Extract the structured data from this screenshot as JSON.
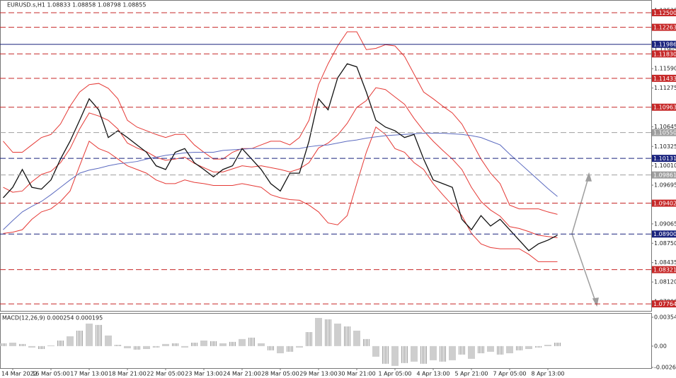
{
  "chart_data": [
    {
      "type": "line",
      "title": "EURUSD.s,H1  1.08833 1.08858 1.08798 1.08855",
      "categories": [
        null,
        "14 Mar 2022",
        null,
        null,
        null,
        "16 Mar 05:00",
        null,
        null,
        null,
        "17 Mar 13:00",
        null,
        null,
        null,
        "18 Mar 21:00",
        null,
        null,
        null,
        "22 Mar 05:00",
        null,
        null,
        null,
        "23 Mar 13:00",
        null,
        null,
        null,
        "24 Mar 21:00",
        null,
        null,
        null,
        "28 Mar 05:00",
        null,
        null,
        null,
        "29 Mar 13:00",
        null,
        null,
        null,
        "30 Mar 21:00",
        null,
        null,
        null,
        "1 Apr 05:00",
        null,
        null,
        null,
        "4 Apr 13:00",
        null,
        null,
        null,
        "5 Apr 21:00",
        null,
        null,
        null,
        "7 Apr 05:00",
        null,
        null,
        null,
        "8 Apr 13:00",
        null
      ],
      "series": [
        {
          "color": "#e53935",
          "values": [
            1.1041,
            1.1023,
            1.1023,
            1.1035,
            1.1047,
            1.1052,
            1.1069,
            1.1098,
            1.1121,
            1.1133,
            1.1135,
            1.1127,
            1.111,
            1.1075,
            1.1064,
            1.1058,
            1.1052,
            1.1047,
            1.1052,
            1.1052,
            1.1035,
            1.1023,
            1.1012,
            1.1012,
            1.1023,
            1.1029,
            1.1029,
            1.1035,
            1.1041,
            1.1041,
            1.1035,
            1.1047,
            1.1075,
            1.1133,
            1.1167,
            1.1196,
            1.1219,
            1.1219,
            1.119,
            1.1192,
            1.1198,
            1.1196,
            1.1179,
            1.115,
            1.1121,
            1.111,
            1.1098,
            1.1087,
            1.1069,
            1.1041,
            1.1012,
            1.0989,
            1.0972,
            1.0937,
            1.0931,
            1.0931,
            1.0931,
            1.0926,
            1.0922
          ]
        },
        {
          "color": "#e53935",
          "values": [
            1.0966,
            1.0958,
            1.096,
            1.0975,
            1.0987,
            1.0992,
            1.1006,
            1.1029,
            1.1061,
            1.1087,
            1.1082,
            1.1075,
            1.1061,
            1.1038,
            1.103,
            1.1024,
            1.1015,
            1.101,
            1.1012,
            1.1015,
            1.1005,
            1.0998,
            1.0991,
            1.0991,
            1.0996,
            1.1001,
            1.0999,
            1.1001,
            1.0998,
            1.0995,
            1.0991,
            1.0996,
            1.1006,
            1.103,
            1.1038,
            1.1051,
            1.107,
            1.1096,
            1.1107,
            1.1128,
            1.1125,
            1.1113,
            1.1101,
            1.1078,
            1.1058,
            1.1041,
            1.1026,
            1.1012,
            1.0995,
            1.0966,
            1.0943,
            1.0929,
            1.0919,
            1.0902,
            1.0899,
            1.0894,
            1.0888,
            1.0886,
            1.0884
          ]
        },
        {
          "color": "#e53935",
          "values": [
            1.0891,
            1.0893,
            1.0897,
            1.0914,
            1.0926,
            1.0931,
            1.0943,
            1.096,
            1.1001,
            1.1041,
            1.1029,
            1.1023,
            1.1012,
            1.1001,
            1.0995,
            1.0989,
            1.0978,
            1.0972,
            1.0972,
            1.0978,
            1.0974,
            1.0972,
            1.0969,
            1.0969,
            1.0969,
            1.0972,
            1.0969,
            1.0966,
            1.0954,
            1.0949,
            1.0946,
            1.0945,
            1.0937,
            1.0926,
            1.0908,
            1.0905,
            1.092,
            1.0972,
            1.1023,
            1.1064,
            1.1052,
            1.1029,
            1.1023,
            1.1006,
            1.0995,
            1.0972,
            1.0954,
            1.0937,
            1.092,
            1.0891,
            1.0874,
            1.0868,
            1.0866,
            1.0866,
            1.0866,
            1.0857,
            1.0845,
            1.0845,
            1.0845
          ]
        },
        {
          "color": "#5c6bc0",
          "values": [
            1.0897,
            1.0912,
            1.0926,
            1.0935,
            1.0943,
            1.0954,
            1.0966,
            1.0978,
            1.0989,
            1.0994,
            1.0997,
            1.1001,
            1.1004,
            1.1006,
            1.1008,
            1.1012,
            1.1015,
            1.1018,
            1.102,
            1.1022,
            1.1023,
            1.1023,
            1.1023,
            1.1026,
            1.1027,
            1.1028,
            1.1029,
            1.1029,
            1.1029,
            1.1029,
            1.1029,
            1.1029,
            1.1032,
            1.1034,
            1.1035,
            1.1038,
            1.1041,
            1.1043,
            1.1046,
            1.1048,
            1.105,
            1.1051,
            1.1052,
            1.1053,
            1.1054,
            1.1054,
            1.1054,
            1.1053,
            1.1052,
            1.105,
            1.1047,
            1.1041,
            1.1035,
            1.102,
            1.1006,
            1.0992,
            1.0978,
            1.0964,
            1.0951
          ]
        },
        {
          "color": "#111111",
          "values": [
            1.0949,
            1.0966,
            1.0995,
            1.0966,
            1.0963,
            1.0978,
            1.1012,
            1.1041,
            1.1075,
            1.111,
            1.1092,
            1.1047,
            1.1058,
            1.1047,
            1.1035,
            1.1023,
            1.1001,
            1.0995,
            1.1023,
            1.1029,
            1.1006,
            1.0995,
            1.0983,
            1.0995,
            1.1001,
            1.1029,
            1.1012,
            1.0995,
            1.0972,
            1.096,
            1.0989,
            1.0989,
            1.1041,
            1.111,
            1.1092,
            1.1144,
            1.1167,
            1.1162,
            1.1121,
            1.1075,
            1.1064,
            1.1058,
            1.1047,
            1.1052,
            1.1012,
            1.0978,
            1.0972,
            1.0966,
            1.0914,
            1.0897,
            1.092,
            1.0903,
            1.0914,
            1.0897,
            1.088,
            1.0863,
            1.0874,
            1.088,
            1.0888
          ]
        }
      ],
      "ylim": [
        1.0765,
        1.12707
      ],
      "yticks": [
        1.12535,
        1.11905,
        {
          "value": 1.1159,
          "label": "1.11590"
        },
        1.11275,
        1.10645,
        1.10325,
        {
          "value": 1.1001,
          "label": "1.10010"
        },
        1.09695,
        1.09065,
        {
          "value": 1.0875,
          "label": "1.08750"
        },
        1.08435,
        {
          "value": 1.0812,
          "label": "1.08120"
        },
        {
          "value": 1.078,
          "label": "1.07800"
        }
      ],
      "levels": [
        {
          "value": 1.125,
          "label": "1.12500",
          "color": "#c62828",
          "style": "dashed"
        },
        {
          "value": 1.12263,
          "label": "1.12263",
          "color": "#c62828",
          "style": "dashed"
        },
        {
          "value": 1.11986,
          "label": "1.11986",
          "color": "#1a237e",
          "style": "solid"
        },
        {
          "value": 1.1183,
          "label": "1.11830",
          "color": "#c62828",
          "style": "dashed"
        },
        {
          "value": 1.11433,
          "label": "1.11433",
          "color": "#c62828",
          "style": "dashed"
        },
        {
          "value": 1.10963,
          "label": "1.10963",
          "color": "#c62828",
          "style": "dashed"
        },
        {
          "value": 1.1055,
          "label": "1.10550",
          "color": "#9e9e9e",
          "style": "dashed"
        },
        {
          "value": 1.10131,
          "label": "1.10131",
          "color": "#1a237e",
          "style": "dashed"
        },
        {
          "value": 1.09861,
          "label": "1.09861",
          "color": "#9e9e9e",
          "style": "dashed"
        },
        {
          "value": 1.09402,
          "label": "1.09402",
          "color": "#c62828",
          "style": "dashed"
        },
        {
          "value": 1.089,
          "label": "1.08900",
          "color": "#1a237e",
          "style": "dashed"
        },
        {
          "value": 1.08321,
          "label": "1.08321",
          "color": "#c62828",
          "style": "dashed"
        },
        {
          "value": 1.07764,
          "label": "1.07764",
          "color": "#c62828",
          "style": "dashed"
        }
      ]
    },
    {
      "type": "bar",
      "title": "MACD(12,26,9) 0.000254 0.000195",
      "color": "#9e9e9e",
      "values": [
        0.00035,
        0.00043,
        0.00026,
        -0.00017,
        -0.00035,
        9e-05,
        0.00069,
        0.00121,
        0.0019,
        0.00277,
        0.0026,
        0.0013,
        0.00017,
        -0.00026,
        -0.00043,
        -0.00035,
        -0.00017,
        0.00026,
        0.00035,
        -0.00017,
        0.00043,
        0.00069,
        0.00061,
        0.00035,
        0.00052,
        0.00087,
        0.00104,
        0.00035,
        -0.00052,
        -0.00087,
        -0.00069,
        -0.00017,
        0.00173,
        0.00346,
        0.00329,
        0.00277,
        0.00242,
        0.0019,
        0.00087,
        -0.0013,
        -0.00216,
        -0.00242,
        -0.00208,
        -0.0019,
        -0.00216,
        -0.00173,
        -0.0019,
        -0.00173,
        -0.00104,
        -0.00156,
        -0.00087,
        -0.00069,
        -0.00104,
        -0.00087,
        -0.00052,
        -0.00035,
        -0.00017,
        0.00017,
        0.00043
      ],
      "ylim": [
        -0.002607,
        0.003545
      ],
      "yticks": [
        0.003545,
        {
          "value": 0,
          "label": "0.00"
        },
        -0.002607
      ]
    }
  ]
}
